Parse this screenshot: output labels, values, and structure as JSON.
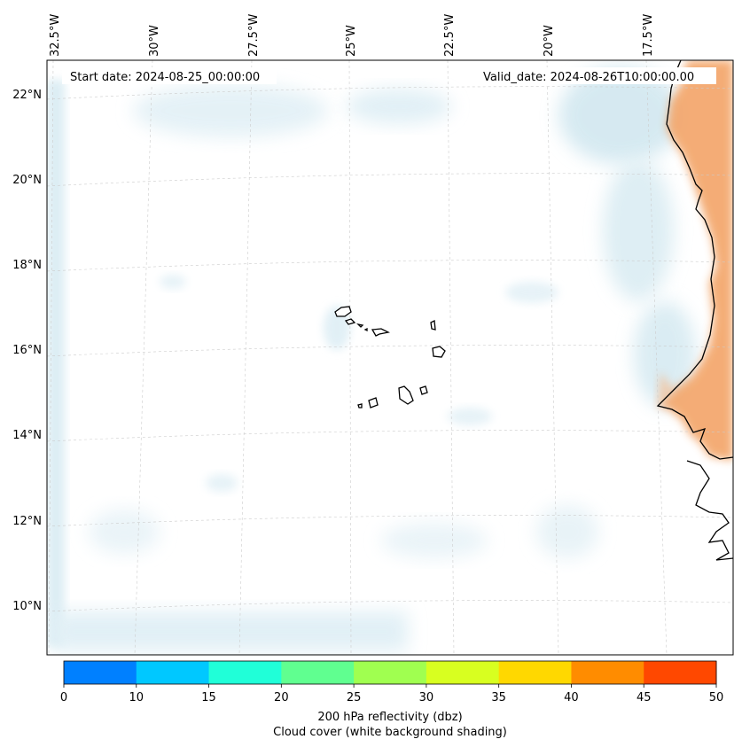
{
  "map": {
    "start_date_label": "Start date: 2024-08-25_00:00:00",
    "valid_date_label": "Valid_date: 2024-08-26T10:00:00.00",
    "lon_labels": [
      "32.5°W",
      "30°W",
      "27.5°W",
      "25°W",
      "22.5°W",
      "20°W",
      "17.5°W"
    ],
    "lat_labels": [
      "22°N",
      "20°N",
      "18°N",
      "16°N",
      "14°N",
      "12°N",
      "10°N"
    ]
  },
  "colorbar": {
    "ticks": [
      "0",
      "10",
      "15",
      "20",
      "25",
      "30",
      "35",
      "40",
      "45",
      "50"
    ],
    "colors": [
      "#0080ff",
      "#00c8ff",
      "#20ffd8",
      "#60ff90",
      "#a0ff50",
      "#d8ff20",
      "#ffd800",
      "#ff8c00",
      "#ff4800"
    ],
    "label_line1": "200 hPa reflectivity (dbz)",
    "label_line2": "Cloud cover (white background shading)"
  },
  "colors": {
    "cloud_shade": "#d6eaf2",
    "land_shade": "#f3a468",
    "coastline": "#000000",
    "gridline": "#cccccc"
  }
}
